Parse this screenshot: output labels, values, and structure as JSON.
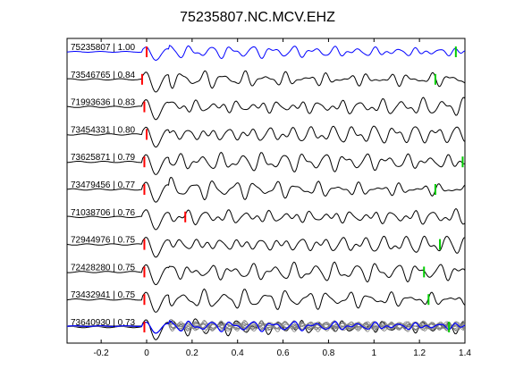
{
  "chart_data": {
    "type": "line",
    "title": "75235807.NC.MCV.EHZ",
    "xlabel": "",
    "ylabel": "",
    "xlim": [
      -0.35,
      1.4
    ],
    "x_ticks": [
      -0.2,
      0,
      0.2,
      0.4,
      0.6,
      0.8,
      1,
      1.2,
      1.4
    ],
    "x_tick_labels": [
      "-0.2",
      "0",
      "0.2",
      "0.4",
      "0.6",
      "0.8",
      "1",
      "1.2",
      "1.4"
    ],
    "grid": false,
    "colors": {
      "reference": "#0000ff",
      "trace": "#000000",
      "stack": "#808080",
      "p_pick": "#ff0000",
      "s_pick": "#00cc00"
    },
    "traces": [
      {
        "label": "75235807 | 1.00",
        "reference": true,
        "p_pick": 0.0,
        "s_pick": 1.36
      },
      {
        "label": "73546765 | 0.84",
        "reference": false,
        "p_pick": -0.02,
        "s_pick": 1.27
      },
      {
        "label": "71993636 | 0.83",
        "reference": false,
        "p_pick": -0.01,
        "s_pick": null
      },
      {
        "label": "73454331 | 0.80",
        "reference": false,
        "p_pick": 0.0,
        "s_pick": null
      },
      {
        "label": "73625871 | 0.79",
        "reference": false,
        "p_pick": -0.01,
        "s_pick": 1.39
      },
      {
        "label": "73479456 | 0.77",
        "reference": false,
        "p_pick": -0.01,
        "s_pick": 1.27
      },
      {
        "label": "71038706 | 0.76",
        "reference": false,
        "p_pick": 0.17,
        "s_pick": null
      },
      {
        "label": "72944976 | 0.75",
        "reference": false,
        "p_pick": -0.01,
        "s_pick": 1.29
      },
      {
        "label": "72428280 | 0.75",
        "reference": false,
        "p_pick": -0.01,
        "s_pick": 1.22
      },
      {
        "label": "73432941 | 0.75",
        "reference": false,
        "p_pick": -0.01,
        "s_pick": 1.24
      },
      {
        "label": "73640930 | 0.73",
        "reference": false,
        "p_pick": -0.01,
        "s_pick": 1.33
      }
    ],
    "stack_trace": {
      "reference": true
    }
  }
}
